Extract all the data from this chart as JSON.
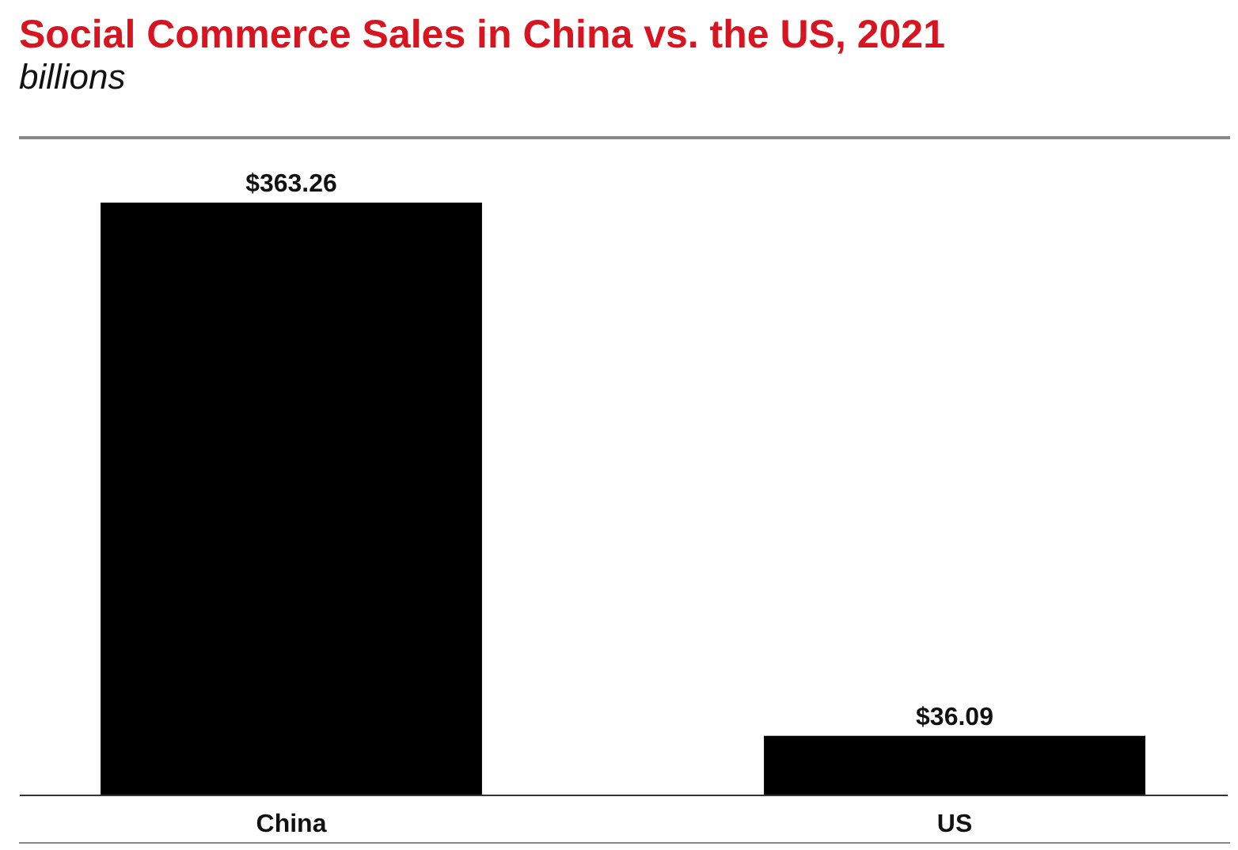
{
  "chart_data": {
    "type": "bar",
    "title": "Social Commerce Sales in China vs. the US, 2021",
    "subtitle": "billions",
    "categories": [
      "China",
      "US"
    ],
    "values": [
      363.26,
      36.09
    ],
    "value_labels": [
      "$363.26",
      "$36.09"
    ],
    "color": "#000000"
  }
}
